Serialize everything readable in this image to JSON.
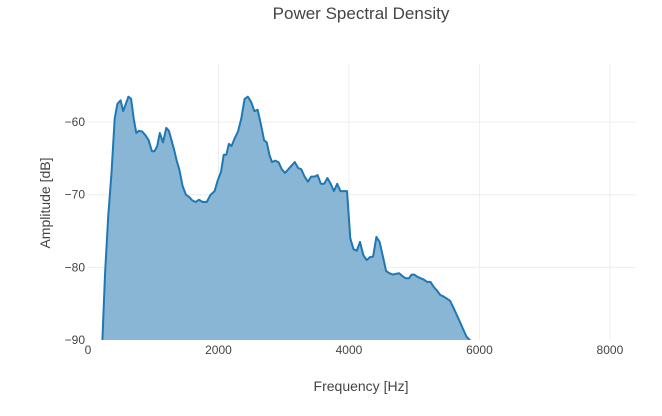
{
  "chart_data": {
    "type": "area",
    "title": "Power Spectral Density",
    "xlabel": "Frequency [Hz]",
    "ylabel": "Amplitude [dB]",
    "xlim": [
      0,
      8400
    ],
    "ylim": [
      -90,
      -52
    ],
    "xticks": [
      0,
      2000,
      4000,
      6000,
      8000
    ],
    "xtick_labels": [
      "0",
      "2000",
      "4000",
      "6000",
      "8000"
    ],
    "yticks": [
      -90,
      -80,
      -70,
      -60
    ],
    "ytick_labels": [
      "−90",
      "−80",
      "−70",
      "−60"
    ],
    "grid": true,
    "legend": false,
    "colors": {
      "line": "#1f77b4",
      "fill": "#8ab6d6",
      "grid": "#eeeeee",
      "text": "#444444"
    },
    "series": [
      {
        "x": [
          220,
          260,
          310,
          360,
          410,
          450,
          500,
          540,
          580,
          620,
          660,
          700,
          740,
          780,
          830,
          880,
          930,
          980,
          1020,
          1060,
          1100,
          1150,
          1200,
          1240,
          1280,
          1320,
          1360,
          1400,
          1450,
          1500,
          1550,
          1600,
          1650,
          1700,
          1760,
          1820,
          1880,
          1940,
          1990,
          2040,
          2080,
          2120,
          2160,
          2200,
          2250,
          2300,
          2350,
          2400,
          2450,
          2500,
          2550,
          2600,
          2630,
          2660,
          2700,
          2740,
          2780,
          2820,
          2870,
          2920,
          2970,
          3020,
          3070,
          3120,
          3170,
          3220,
          3270,
          3320,
          3370,
          3420,
          3470,
          3520,
          3570,
          3620,
          3670,
          3720,
          3770,
          3820,
          3870,
          3920,
          3970,
          4020,
          4070,
          4120,
          4170,
          4220,
          4270,
          4320,
          4370,
          4420,
          4470,
          4520,
          4570,
          4620,
          4670,
          4720,
          4770,
          4820,
          4870,
          4920,
          4960,
          5000,
          5050,
          5100,
          5150,
          5200,
          5250,
          5300,
          5350,
          5400,
          5450,
          5500,
          5550,
          5600,
          5650,
          5700,
          5750,
          5800,
          5850,
          5900,
          5950,
          6000,
          6050,
          6100,
          6150,
          6200,
          6250
        ],
        "y": [
          -90,
          -81,
          -73,
          -67,
          -59.5,
          -57.5,
          -57,
          -58.5,
          -57.5,
          -56.5,
          -56.8,
          -59.5,
          -61.5,
          -61.2,
          -61.3,
          -61.8,
          -62.5,
          -64,
          -64,
          -63.3,
          -61.5,
          -62.8,
          -60.8,
          -61.2,
          -62.5,
          -63.8,
          -65.3,
          -66.5,
          -68.8,
          -70,
          -70.3,
          -70.8,
          -71,
          -70.7,
          -71,
          -71,
          -70,
          -69.5,
          -68,
          -66.8,
          -64.5,
          -64.5,
          -63,
          -63.3,
          -62.2,
          -61.3,
          -59.5,
          -56.8,
          -56.5,
          -57.2,
          -58.5,
          -58.3,
          -59.5,
          -60.7,
          -62.5,
          -62.8,
          -64.5,
          -65.5,
          -65.3,
          -65.5,
          -66.5,
          -67,
          -66.5,
          -66,
          -65.5,
          -66.3,
          -66.5,
          -67.5,
          -68.2,
          -67.5,
          -67.5,
          -67.3,
          -68.5,
          -68.5,
          -67.7,
          -68.5,
          -69.5,
          -68.5,
          -69.5,
          -69.5,
          -69.5,
          -76,
          -77.5,
          -77.7,
          -76.5,
          -78.3,
          -79,
          -78.6,
          -78.5,
          -75.8,
          -76.5,
          -78.5,
          -80.5,
          -80.8,
          -81,
          -80.9,
          -80.8,
          -81.2,
          -81.5,
          -81.5,
          -81,
          -81,
          -81.3,
          -81.5,
          -81.7,
          -82,
          -82,
          -82.7,
          -83.2,
          -83.8,
          -84,
          -84.3,
          -84.6,
          -85.5,
          -86.5,
          -87.5,
          -88.5,
          -89.5,
          -90,
          -90.3,
          -90.5,
          -90.5,
          -90.5,
          -90.5,
          -90.5,
          -90.5,
          -90.5
        ]
      }
    ]
  }
}
